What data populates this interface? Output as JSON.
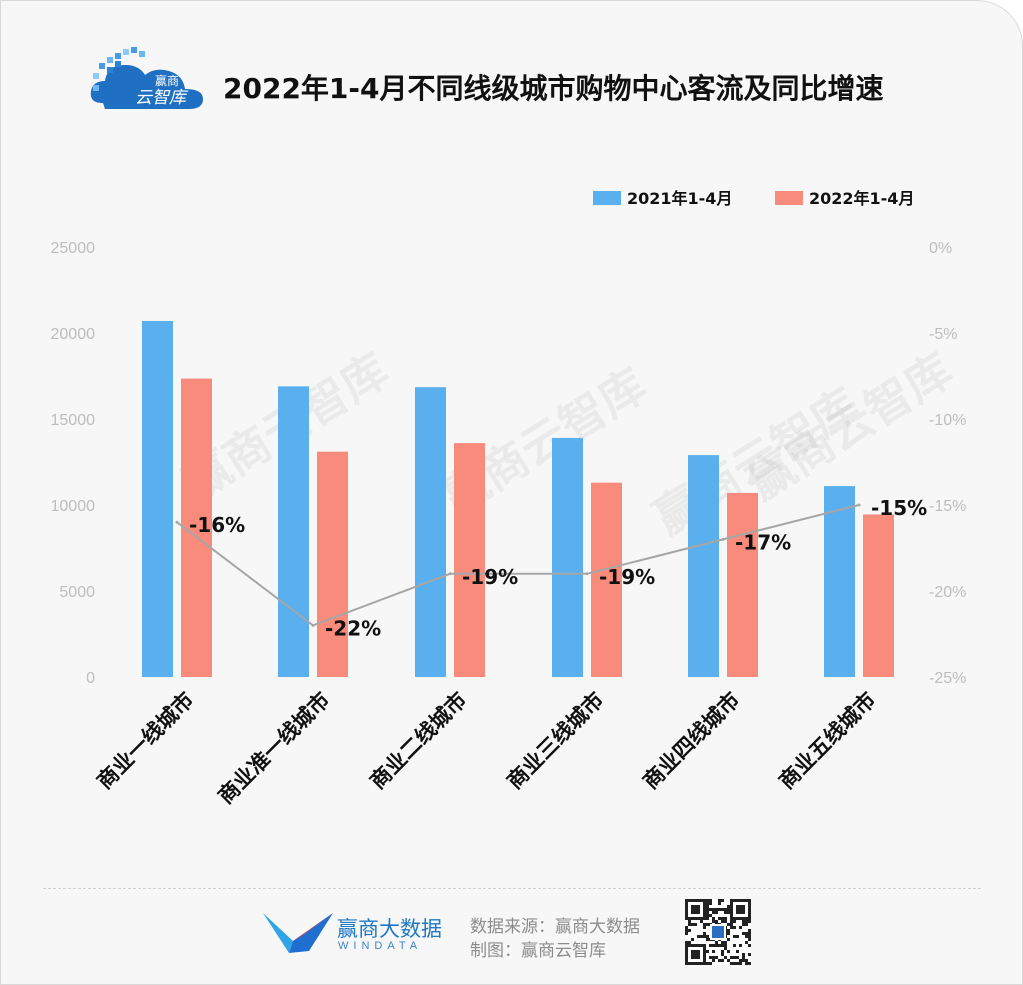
{
  "header": {
    "logo_text_1": "赢商",
    "logo_text_2": "云智库",
    "title": "2022年1-4月不同线级城市购物中心客流及同比增速"
  },
  "chart_data": {
    "type": "bar",
    "title": "2022年1-4月不同线级城市购物中心客流及同比增速",
    "categories": [
      "商业一线城市",
      "商业准一线城市",
      "商业二线城市",
      "商业三线城市",
      "商业四线城市",
      "商业五线城市"
    ],
    "series": [
      {
        "name": "2021年1-4月",
        "type": "bar",
        "axis": "left",
        "color": "#5aafee",
        "values": [
          20700,
          16900,
          16850,
          13900,
          12900,
          11100
        ]
      },
      {
        "name": "2022年1-4月",
        "type": "bar",
        "axis": "left",
        "color": "#f98b7c",
        "values": [
          17350,
          13100,
          13600,
          11300,
          10700,
          9450
        ]
      },
      {
        "type": "line",
        "axis": "right",
        "color": "#a6a6a6",
        "values": [
          -16,
          -22,
          -19,
          -19,
          -17,
          -15
        ],
        "labels": [
          "-16%",
          "-22%",
          "-19%",
          "-19%",
          "-17%",
          "-15%"
        ]
      }
    ],
    "y_left": {
      "ticks": [
        "25000",
        "20000",
        "15000",
        "10000",
        "5000",
        "0"
      ],
      "range": [
        0,
        25000
      ]
    },
    "y_right": {
      "ticks": [
        "0%",
        "-5%",
        "-10%",
        "-15%",
        "-20%",
        "-25%"
      ],
      "range": [
        -25,
        0
      ]
    },
    "legend_position": "top-right",
    "grid": false,
    "watermark": "赢商云智库"
  },
  "footer": {
    "brand": "赢商大数据",
    "brand_en": "WINDATA",
    "source": "数据来源：赢商大数据",
    "credit": "制图：赢商云智库"
  }
}
